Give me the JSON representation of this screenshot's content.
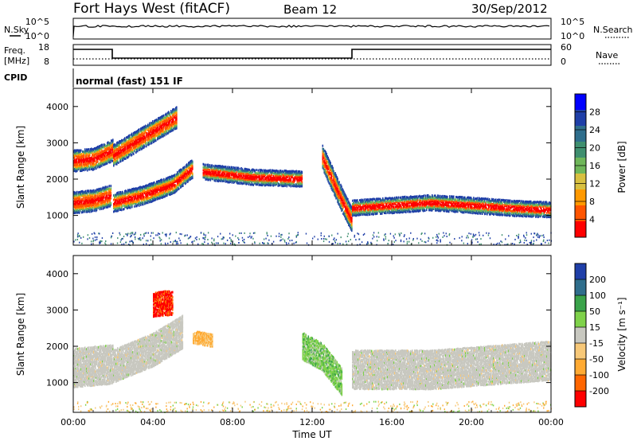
{
  "header": {
    "station": "Fort Hays West (fitACF)",
    "beam": "Beam 12",
    "date": "30/Sep/2012"
  },
  "top_panels": {
    "nsky_label": "N.Sky",
    "nsky_ticks": [
      "10^5",
      "10^0"
    ],
    "nsearch_label": "N.Search",
    "nsearch_ticks": [
      "10^5",
      "10^0"
    ],
    "freq_label_line1": "Freq.",
    "freq_label_line2": "[MHz]",
    "freq_ticks": [
      "18",
      "8"
    ],
    "nave_label": "Nave",
    "nave_ticks": [
      "60",
      "0"
    ],
    "cpid_label": "CPID",
    "cpid_text": "normal (fast) 151 IF"
  },
  "colors": {
    "power_scale": [
      "#0000ff",
      "#1f3fa8",
      "#2f6e8c",
      "#3f8f6f",
      "#6fb75a",
      "#d8c040",
      "#ff9900",
      "#ff5500",
      "#ff0000"
    ],
    "velocity_scale": [
      "#1f3fa8",
      "#2f6e8c",
      "#3aa34a",
      "#7fd24a",
      "#c8c8c0",
      "#f7c878",
      "#ffaa33",
      "#ff6600",
      "#ff0000"
    ],
    "ground_scatter": "#c8c8c0"
  },
  "chart_data": [
    {
      "type": "heatmap",
      "name": "power",
      "ylabel": "Slant Range [km]",
      "xlabel": "",
      "x_ticks": [
        "00:00",
        "04:00",
        "08:00",
        "12:00",
        "16:00",
        "20:00",
        "00:00"
      ],
      "x_range_hours": [
        0,
        24
      ],
      "y_ticks": [
        1000,
        2000,
        3000,
        4000
      ],
      "ylim": [
        180,
        4500
      ],
      "colorbar": {
        "label": "Power [dB]",
        "ticks": [
          "28",
          "24",
          "20",
          "16",
          "12",
          "8",
          "4"
        ],
        "range": [
          0,
          32
        ]
      },
      "echo_bands": [
        {
          "x": [
            0,
            1.0,
            1.9
          ],
          "y": [
            1350,
            1400,
            1550
          ],
          "width": 260
        },
        {
          "x": [
            2.0,
            3.5,
            5.0,
            6.0
          ],
          "y": [
            1350,
            1550,
            1850,
            2300
          ],
          "width": 240
        },
        {
          "x": [
            0,
            1.0,
            2.0
          ],
          "y": [
            2500,
            2550,
            2800
          ],
          "width": 280
        },
        {
          "x": [
            2.0,
            3.5,
            5.2
          ],
          "y": [
            2650,
            3150,
            3700
          ],
          "width": 260
        },
        {
          "x": [
            6.5,
            9.0,
            11.5
          ],
          "y": [
            2200,
            2050,
            2000
          ],
          "width": 200
        },
        {
          "x": [
            12.5,
            13.5,
            14.0
          ],
          "y": [
            2600,
            1400,
            850
          ],
          "width": 300
        },
        {
          "x": [
            14.0,
            18.0,
            22.0,
            24.0
          ],
          "y": [
            1200,
            1350,
            1200,
            1150
          ],
          "width": 200
        }
      ]
    },
    {
      "type": "heatmap",
      "name": "velocity",
      "ylabel": "Slant Range [km]",
      "xlabel": "Time UT",
      "x_ticks": [
        "00:00",
        "04:00",
        "08:00",
        "12:00",
        "16:00",
        "20:00",
        "00:00"
      ],
      "x_range_hours": [
        0,
        24
      ],
      "y_ticks": [
        1000,
        2000,
        3000,
        4000
      ],
      "ylim": [
        180,
        4500
      ],
      "colorbar": {
        "label": "Velocity [m s⁻¹]",
        "ticks": [
          "200",
          "100",
          "50",
          "15",
          "-15",
          "-50",
          "-100",
          "-200"
        ],
        "range": [
          -250,
          250
        ]
      },
      "features": [
        {
          "kind": "ground_scatter",
          "x": [
            0,
            2.0
          ],
          "y": [
            1400,
            1500
          ],
          "width": 500
        },
        {
          "kind": "ground_scatter",
          "x": [
            2.0,
            4.0,
            5.5
          ],
          "y": [
            1450,
            1900,
            2400
          ],
          "width": 420
        },
        {
          "kind": "ground_scatter",
          "x": [
            14.0,
            18.0,
            24.0
          ],
          "y": [
            1350,
            1350,
            1600
          ],
          "width": 520
        },
        {
          "kind": "negative_fast",
          "x": [
            4.0,
            5.0
          ],
          "y": [
            3150,
            3200
          ],
          "width": 300
        },
        {
          "kind": "negative_medium",
          "x": [
            6.0,
            7.0
          ],
          "y": [
            2250,
            2150
          ],
          "width": 150
        },
        {
          "kind": "positive_weak",
          "x": [
            11.5,
            12.5,
            13.5
          ],
          "y": [
            2000,
            1700,
            1000
          ],
          "width": 350
        }
      ]
    }
  ]
}
